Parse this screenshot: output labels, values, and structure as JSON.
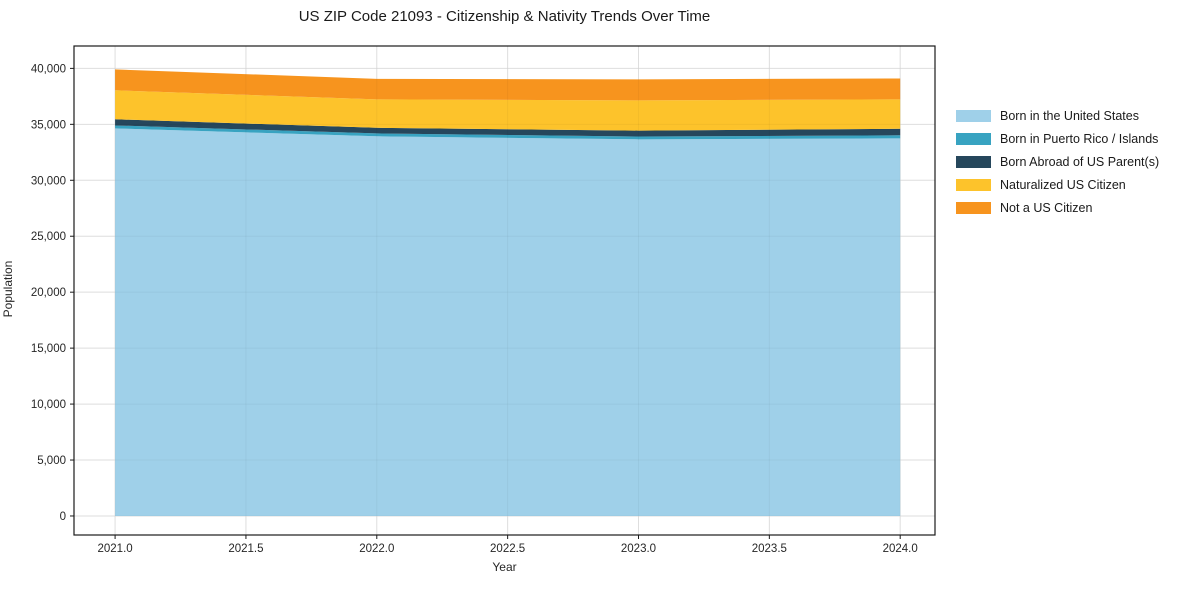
{
  "title": "US ZIP Code 21093 - Citizenship & Nativity Trends Over Time",
  "chart_data": {
    "type": "area",
    "stacked": true,
    "title": "US ZIP Code 21093 - Citizenship & Nativity Trends Over Time",
    "xlabel": "Year",
    "ylabel": "Population",
    "x": [
      2021,
      2022,
      2023,
      2024
    ],
    "series": [
      {
        "name": "Born in the United States",
        "color": "#9FD0E9",
        "values": [
          34640,
          33930,
          33660,
          33750
        ]
      },
      {
        "name": "Born in Puerto Rico / Islands",
        "color": "#38A3C1",
        "values": [
          260,
          260,
          250,
          270
        ]
      },
      {
        "name": "Born Abroad of US Parent(s)",
        "color": "#26475C",
        "values": [
          550,
          500,
          530,
          580
        ]
      },
      {
        "name": "Naturalized US Citizen",
        "color": "#FDC32B",
        "values": [
          2590,
          2540,
          2700,
          2630
        ]
      },
      {
        "name": "Not a US Citizen",
        "color": "#F7941E",
        "values": [
          1870,
          1830,
          1880,
          1870
        ]
      }
    ],
    "xticks": [
      "2021.0",
      "2021.5",
      "2022.0",
      "2022.5",
      "2023.0",
      "2023.5",
      "2024.0"
    ],
    "xtick_values": [
      2021.0,
      2021.5,
      2022.0,
      2022.5,
      2023.0,
      2023.5,
      2024.0
    ],
    "yticks": [
      "0",
      "5,000",
      "10,000",
      "15,000",
      "20,000",
      "25,000",
      "30,000",
      "35,000",
      "40,000"
    ],
    "ytick_values": [
      0,
      5000,
      10000,
      15000,
      20000,
      25000,
      30000,
      35000,
      40000
    ],
    "xlim": [
      2020.843,
      2024.133
    ],
    "ylim": [
      -1700,
      42000
    ],
    "grid": true,
    "grid_color": "#e7e7e7",
    "axis_color": "#1a1a1a",
    "legend_position": "right-outside"
  }
}
